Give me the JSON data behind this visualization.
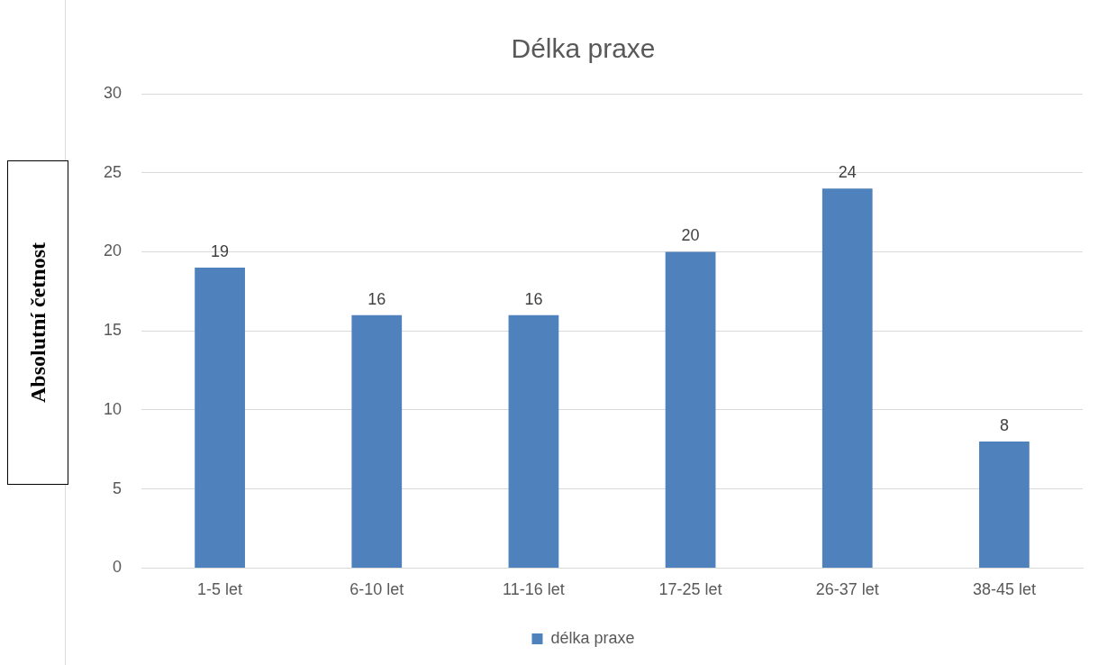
{
  "chart_data": {
    "type": "bar",
    "title": "Délka praxe",
    "ylabel": "Absolutní četnost",
    "categories": [
      "1-5 let",
      "6-10 let",
      "11-16 let",
      "17-25 let",
      "26-37 let",
      "38-45 let"
    ],
    "series": [
      {
        "name": "délka praxe",
        "color": "#4f81bd",
        "values": [
          19,
          16,
          16,
          20,
          24,
          8
        ]
      }
    ],
    "ylim": [
      0,
      30
    ],
    "yticks": [
      0,
      5,
      10,
      15,
      20,
      25,
      30
    ],
    "grid": "y",
    "legend": "bottom",
    "data_labels": true
  }
}
